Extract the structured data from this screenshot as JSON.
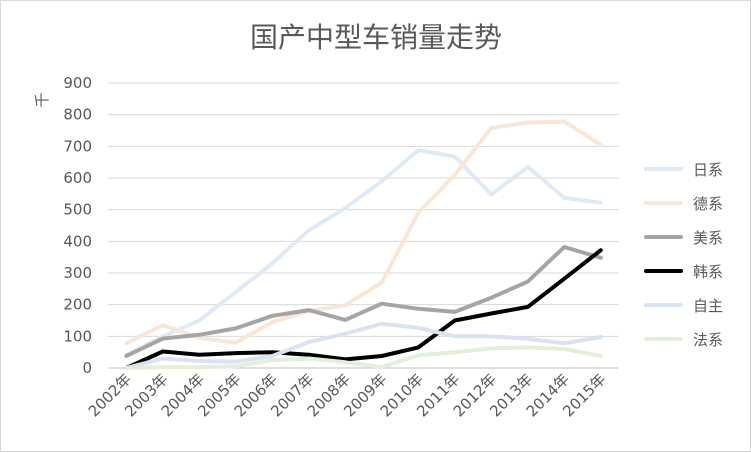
{
  "chart_data": {
    "type": "line",
    "title": "国产中型车销量走势",
    "ylabel": "千",
    "xlabel": "",
    "ylim": [
      0,
      900
    ],
    "yticks": [
      0,
      100,
      200,
      300,
      400,
      500,
      600,
      700,
      800,
      900
    ],
    "grid": true,
    "legend_position": "right",
    "categories": [
      "2002年",
      "2003年",
      "2004年",
      "2005年",
      "2006年",
      "2007年",
      "2008年",
      "2009年",
      "2010年",
      "2011年",
      "2012年",
      "2013年",
      "2014年",
      "2015年"
    ],
    "series": [
      {
        "name": "日系",
        "color": "#deebf7",
        "values": [
          40,
          100,
          150,
          240,
          330,
          435,
          505,
          590,
          688,
          668,
          548,
          635,
          537,
          522
        ]
      },
      {
        "name": "德系",
        "color": "#fbe5d6",
        "values": [
          78,
          135,
          95,
          80,
          145,
          180,
          198,
          270,
          490,
          610,
          758,
          775,
          778,
          705
        ]
      },
      {
        "name": "美系",
        "color": "#a5a5a5",
        "values": [
          38,
          93,
          105,
          125,
          165,
          183,
          152,
          203,
          187,
          177,
          222,
          273,
          382,
          348
        ]
      },
      {
        "name": "韩系",
        "color": "#000000",
        "values": [
          0,
          52,
          42,
          47,
          50,
          42,
          27,
          38,
          65,
          150,
          172,
          193,
          282,
          372
        ]
      },
      {
        "name": "自主",
        "color": "#dae3f3",
        "values": [
          0,
          30,
          22,
          20,
          38,
          82,
          108,
          140,
          127,
          100,
          100,
          92,
          78,
          98
        ]
      },
      {
        "name": "法系",
        "color": "#e2f0d9",
        "values": [
          0,
          3,
          3,
          5,
          25,
          30,
          18,
          3,
          40,
          50,
          62,
          65,
          60,
          38
        ]
      }
    ]
  }
}
